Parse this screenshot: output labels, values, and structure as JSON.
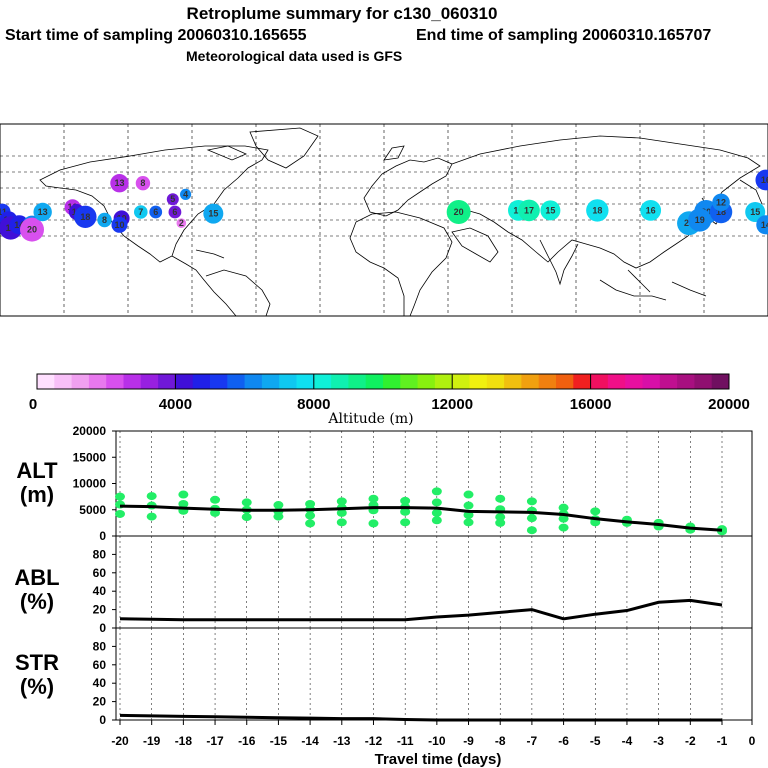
{
  "header": {
    "title": "Retroplume summary for c130_060310",
    "start_label": "Start time of sampling 20060310.165655",
    "end_label": "End time of sampling 20060310.165707",
    "met_label": "Meteorological data used is GFS"
  },
  "map": {
    "name": "world map with retroplume cluster positions",
    "clusters": [
      {
        "lon": -179,
        "lat": 20,
        "alt": 5200,
        "day": "11"
      },
      {
        "lon": -176,
        "lat": 15,
        "alt": 4800,
        "day": "12"
      },
      {
        "lon": -175,
        "lat": 10,
        "alt": 4400,
        "day": "19"
      },
      {
        "lon": -171,
        "lat": 12,
        "alt": 4600,
        "day": "14"
      },
      {
        "lon": -165,
        "lat": 12,
        "alt": 6400,
        "day": "13"
      },
      {
        "lon": -165,
        "lat": 9,
        "alt": 2400,
        "day": "20"
      },
      {
        "lon": -160,
        "lat": 20,
        "alt": 6500,
        "day": "13"
      },
      {
        "lon": -146,
        "lat": 23,
        "alt": 2600,
        "day": "10"
      },
      {
        "lon": -144,
        "lat": 20,
        "alt": 4200,
        "day": "10"
      },
      {
        "lon": -140,
        "lat": 17,
        "alt": 5400,
        "day": "18"
      },
      {
        "lon": -131,
        "lat": 15,
        "alt": 6500,
        "day": "8"
      },
      {
        "lon": -123,
        "lat": 16,
        "alt": 4300,
        "day": "10"
      },
      {
        "lon": -124,
        "lat": 12,
        "alt": 5000,
        "day": "10"
      },
      {
        "lon": -114,
        "lat": 20,
        "alt": 7000,
        "day": "7"
      },
      {
        "lon": -107,
        "lat": 20,
        "alt": 5600,
        "day": "6"
      },
      {
        "lon": -98,
        "lat": 20,
        "alt": 3600,
        "day": "6"
      },
      {
        "lon": -95,
        "lat": 13,
        "alt": 1600,
        "day": "2"
      },
      {
        "lon": -99,
        "lat": 28,
        "alt": 3800,
        "day": "5"
      },
      {
        "lon": -80,
        "lat": 19,
        "alt": 6800,
        "day": "15"
      },
      {
        "lon": -93,
        "lat": 31,
        "alt": 6000,
        "day": "4"
      },
      {
        "lon": -113,
        "lat": 38,
        "alt": 2400,
        "day": "8"
      },
      {
        "lon": -124,
        "lat": 38,
        "alt": 2600,
        "day": "13"
      },
      {
        "lon": 35,
        "lat": 20,
        "alt": 9000,
        "day": "20"
      },
      {
        "lon": 63,
        "lat": 21,
        "alt": 8200,
        "day": "16"
      },
      {
        "lon": 68,
        "lat": 21,
        "alt": 8600,
        "day": "17"
      },
      {
        "lon": 78,
        "lat": 21,
        "alt": 8000,
        "day": "15"
      },
      {
        "lon": 100,
        "lat": 21,
        "alt": 7800,
        "day": "18"
      },
      {
        "lon": 125,
        "lat": 21,
        "alt": 7600,
        "day": "16"
      },
      {
        "lon": 143,
        "lat": 13,
        "alt": 6600,
        "day": "20"
      },
      {
        "lon": 151,
        "lat": 20,
        "alt": 6200,
        "day": "20"
      },
      {
        "lon": 148,
        "lat": 15,
        "alt": 6400,
        "day": "19"
      },
      {
        "lon": 158,
        "lat": 20,
        "alt": 5800,
        "day": "18"
      },
      {
        "lon": 158,
        "lat": 26,
        "alt": 6400,
        "day": "12"
      },
      {
        "lon": 174,
        "lat": 20,
        "alt": 7000,
        "day": "15"
      },
      {
        "lon": 179,
        "lat": 12,
        "alt": 6200,
        "day": "14"
      },
      {
        "lon": 179,
        "lat": 40,
        "alt": 5000,
        "day": "16"
      }
    ]
  },
  "colorbar": {
    "name": "altitude colorbar",
    "ticks": [
      "0",
      "4000",
      "8000",
      "12000",
      "16000",
      "20000"
    ],
    "label": "Altitude (m)",
    "colors": [
      "#ffe0ff",
      "#f8c0f8",
      "#f0a0f0",
      "#e878ee",
      "#d850ee",
      "#b830e8",
      "#9820e0",
      "#7018d8",
      "#4010d8",
      "#2020e8",
      "#1838f0",
      "#1060f0",
      "#1088f0",
      "#10a8f0",
      "#10c8f0",
      "#10e0f0",
      "#10f0d8",
      "#10f0b0",
      "#10f088",
      "#10f060",
      "#30f030",
      "#60f020",
      "#88f010",
      "#b0f010",
      "#d0f010",
      "#f0f010",
      "#f0e010",
      "#f0c010",
      "#f0a010",
      "#f08010",
      "#f06010",
      "#f02020",
      "#f01060",
      "#f01088",
      "#e810a0",
      "#d810a8",
      "#c01090",
      "#a81080",
      "#901070",
      "#701060"
    ]
  },
  "chart_data": [
    {
      "type": "line",
      "name": "ALT",
      "panel_label": "ALT",
      "unit_label": "(m)",
      "x": [
        -20,
        -19,
        -18,
        -17,
        -16,
        -15,
        -14,
        -13,
        -12,
        -11,
        -10,
        -9,
        -8,
        -7,
        -6,
        -5,
        -4,
        -3,
        -2,
        -1
      ],
      "series": [
        {
          "name": "mean altitude",
          "values": [
            5700,
            5600,
            5300,
            5100,
            4900,
            4900,
            5000,
            5200,
            5400,
            5400,
            5300,
            4700,
            4600,
            4500,
            4100,
            3300,
            2700,
            2200,
            1500,
            1100
          ]
        }
      ],
      "scatter": [
        {
          "x": -20,
          "y": 7500
        },
        {
          "x": -20,
          "y": 6000
        },
        {
          "x": -20,
          "y": 4200
        },
        {
          "x": -19,
          "y": 7600
        },
        {
          "x": -19,
          "y": 5800
        },
        {
          "x": -19,
          "y": 3700
        },
        {
          "x": -18,
          "y": 7900
        },
        {
          "x": -18,
          "y": 6100
        },
        {
          "x": -18,
          "y": 4800
        },
        {
          "x": -17,
          "y": 6900
        },
        {
          "x": -17,
          "y": 5200
        },
        {
          "x": -17,
          "y": 4400
        },
        {
          "x": -16,
          "y": 6400
        },
        {
          "x": -16,
          "y": 5000
        },
        {
          "x": -16,
          "y": 3600
        },
        {
          "x": -15,
          "y": 5900
        },
        {
          "x": -15,
          "y": 4700
        },
        {
          "x": -15,
          "y": 3700
        },
        {
          "x": -14,
          "y": 6100
        },
        {
          "x": -14,
          "y": 5100
        },
        {
          "x": -14,
          "y": 3900
        },
        {
          "x": -14,
          "y": 2400
        },
        {
          "x": -13,
          "y": 6600
        },
        {
          "x": -13,
          "y": 5400
        },
        {
          "x": -13,
          "y": 4400
        },
        {
          "x": -13,
          "y": 2600
        },
        {
          "x": -12,
          "y": 7100
        },
        {
          "x": -12,
          "y": 5900
        },
        {
          "x": -12,
          "y": 4900
        },
        {
          "x": -12,
          "y": 2400
        },
        {
          "x": -11,
          "y": 6700
        },
        {
          "x": -11,
          "y": 5500
        },
        {
          "x": -11,
          "y": 4600
        },
        {
          "x": -11,
          "y": 2600
        },
        {
          "x": -10,
          "y": 8500
        },
        {
          "x": -10,
          "y": 6400
        },
        {
          "x": -10,
          "y": 4400
        },
        {
          "x": -10,
          "y": 3000
        },
        {
          "x": -9,
          "y": 7900
        },
        {
          "x": -9,
          "y": 5800
        },
        {
          "x": -9,
          "y": 4000
        },
        {
          "x": -9,
          "y": 2600
        },
        {
          "x": -8,
          "y": 7100
        },
        {
          "x": -8,
          "y": 5100
        },
        {
          "x": -8,
          "y": 3600
        },
        {
          "x": -8,
          "y": 2500
        },
        {
          "x": -7,
          "y": 6600
        },
        {
          "x": -7,
          "y": 4800
        },
        {
          "x": -7,
          "y": 3400
        },
        {
          "x": -7,
          "y": 1100
        },
        {
          "x": -6,
          "y": 5400
        },
        {
          "x": -6,
          "y": 4200
        },
        {
          "x": -6,
          "y": 3300
        },
        {
          "x": -6,
          "y": 1600
        },
        {
          "x": -5,
          "y": 4700
        },
        {
          "x": -5,
          "y": 3200
        },
        {
          "x": -5,
          "y": 2600
        },
        {
          "x": -4,
          "y": 3100
        },
        {
          "x": -4,
          "y": 2500
        },
        {
          "x": -3,
          "y": 2500
        },
        {
          "x": -3,
          "y": 1800
        },
        {
          "x": -2,
          "y": 1800
        },
        {
          "x": -2,
          "y": 1200
        },
        {
          "x": -1,
          "y": 1300
        },
        {
          "x": -1,
          "y": 900
        }
      ],
      "xlim": [
        -20,
        0
      ],
      "ylim": [
        0,
        20000
      ],
      "yticks": [
        "20000",
        "15000",
        "10000",
        "5000",
        "0"
      ]
    },
    {
      "type": "line",
      "name": "ABL",
      "panel_label": "ABL",
      "unit_label": "(%)",
      "x": [
        -20,
        -19,
        -18,
        -17,
        -16,
        -15,
        -14,
        -13,
        -12,
        -11,
        -10,
        -9,
        -8,
        -7,
        -6,
        -5,
        -4,
        -3,
        -2,
        -1
      ],
      "series": [
        {
          "name": "fraction in boundary layer",
          "values": [
            10,
            9.5,
            9,
            9,
            9,
            9,
            9,
            9,
            9,
            9,
            12,
            14,
            17,
            20,
            10,
            15,
            19,
            28,
            30,
            25
          ]
        }
      ],
      "xlim": [
        -20,
        0
      ],
      "ylim": [
        0,
        100
      ],
      "yticks": [
        "80",
        "60",
        "40",
        "20",
        "0"
      ]
    },
    {
      "type": "line",
      "name": "STR",
      "panel_label": "STR",
      "unit_label": "(%)",
      "x": [
        -20,
        -19,
        -18,
        -17,
        -16,
        -15,
        -14,
        -13,
        -12,
        -11,
        -10,
        -9,
        -8,
        -7,
        -6,
        -5,
        -4,
        -3,
        -2,
        -1
      ],
      "series": [
        {
          "name": "fraction in stratosphere",
          "values": [
            5,
            4.5,
            4,
            3.5,
            3,
            2.5,
            2,
            1.5,
            1.5,
            0.5,
            0,
            0,
            0,
            0,
            0,
            0,
            0,
            0,
            0,
            0
          ]
        }
      ],
      "xlim": [
        -20,
        0
      ],
      "ylim": [
        0,
        100
      ],
      "yticks": [
        "80",
        "60",
        "40",
        "20",
        "0"
      ]
    }
  ],
  "xaxis": {
    "ticks": [
      "-20",
      "-19",
      "-18",
      "-17",
      "-16",
      "-15",
      "-14",
      "-13",
      "-12",
      "-11",
      "-10",
      "-9",
      "-8",
      "-7",
      "-6",
      "-5",
      "-4",
      "-3",
      "-2",
      "-1",
      "0"
    ],
    "label": "Travel time (days)"
  },
  "line_color": "#000000",
  "marker_color": "#22ee66"
}
